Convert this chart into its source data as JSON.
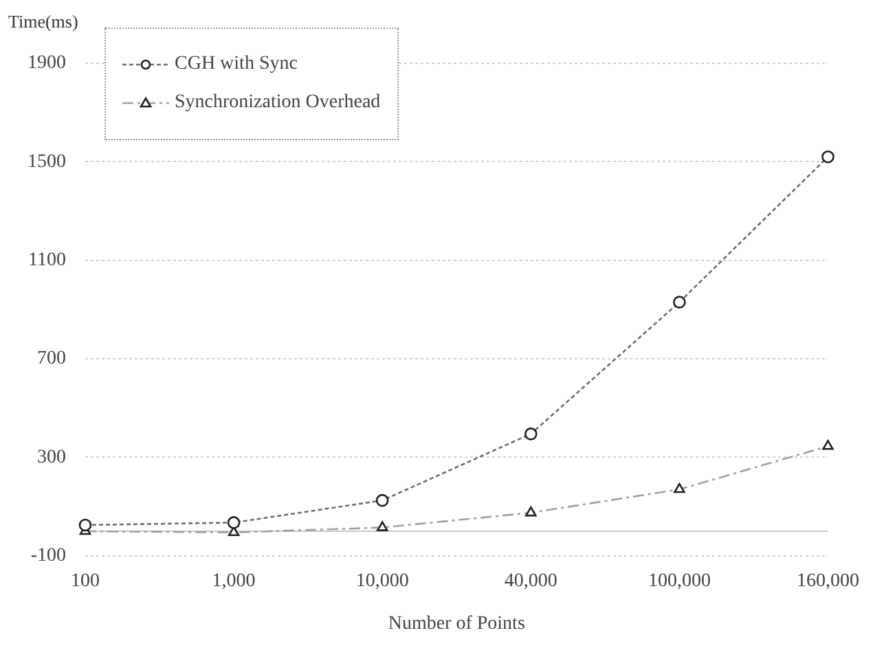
{
  "chart_data": {
    "type": "line",
    "ylabel": "Time(ms)",
    "xlabel": "Number of Points",
    "categories": [
      "100",
      "1,000",
      "10,000",
      "40,000",
      "100,000",
      "160,000"
    ],
    "series": [
      {
        "name": "CGH with Sync",
        "color": "#6e6e6e",
        "values": [
          25,
          35,
          125,
          395,
          930,
          1520
        ],
        "marker": "circle",
        "line_style": "dotted"
      },
      {
        "name": "Synchronization Overhead",
        "color": "#a0a0a0",
        "values": [
          0,
          -5,
          15,
          75,
          170,
          345
        ],
        "marker": "triangle",
        "line_style": "dashed"
      }
    ],
    "ylim": [
      -100,
      1900
    ],
    "yticks": [
      -100,
      300,
      700,
      1100,
      1500,
      1900
    ],
    "grid": "y",
    "legend": "top left",
    "ref_lines": [
      {
        "axis": "y",
        "value": 0,
        "color": "#c8c8c8"
      }
    ]
  }
}
